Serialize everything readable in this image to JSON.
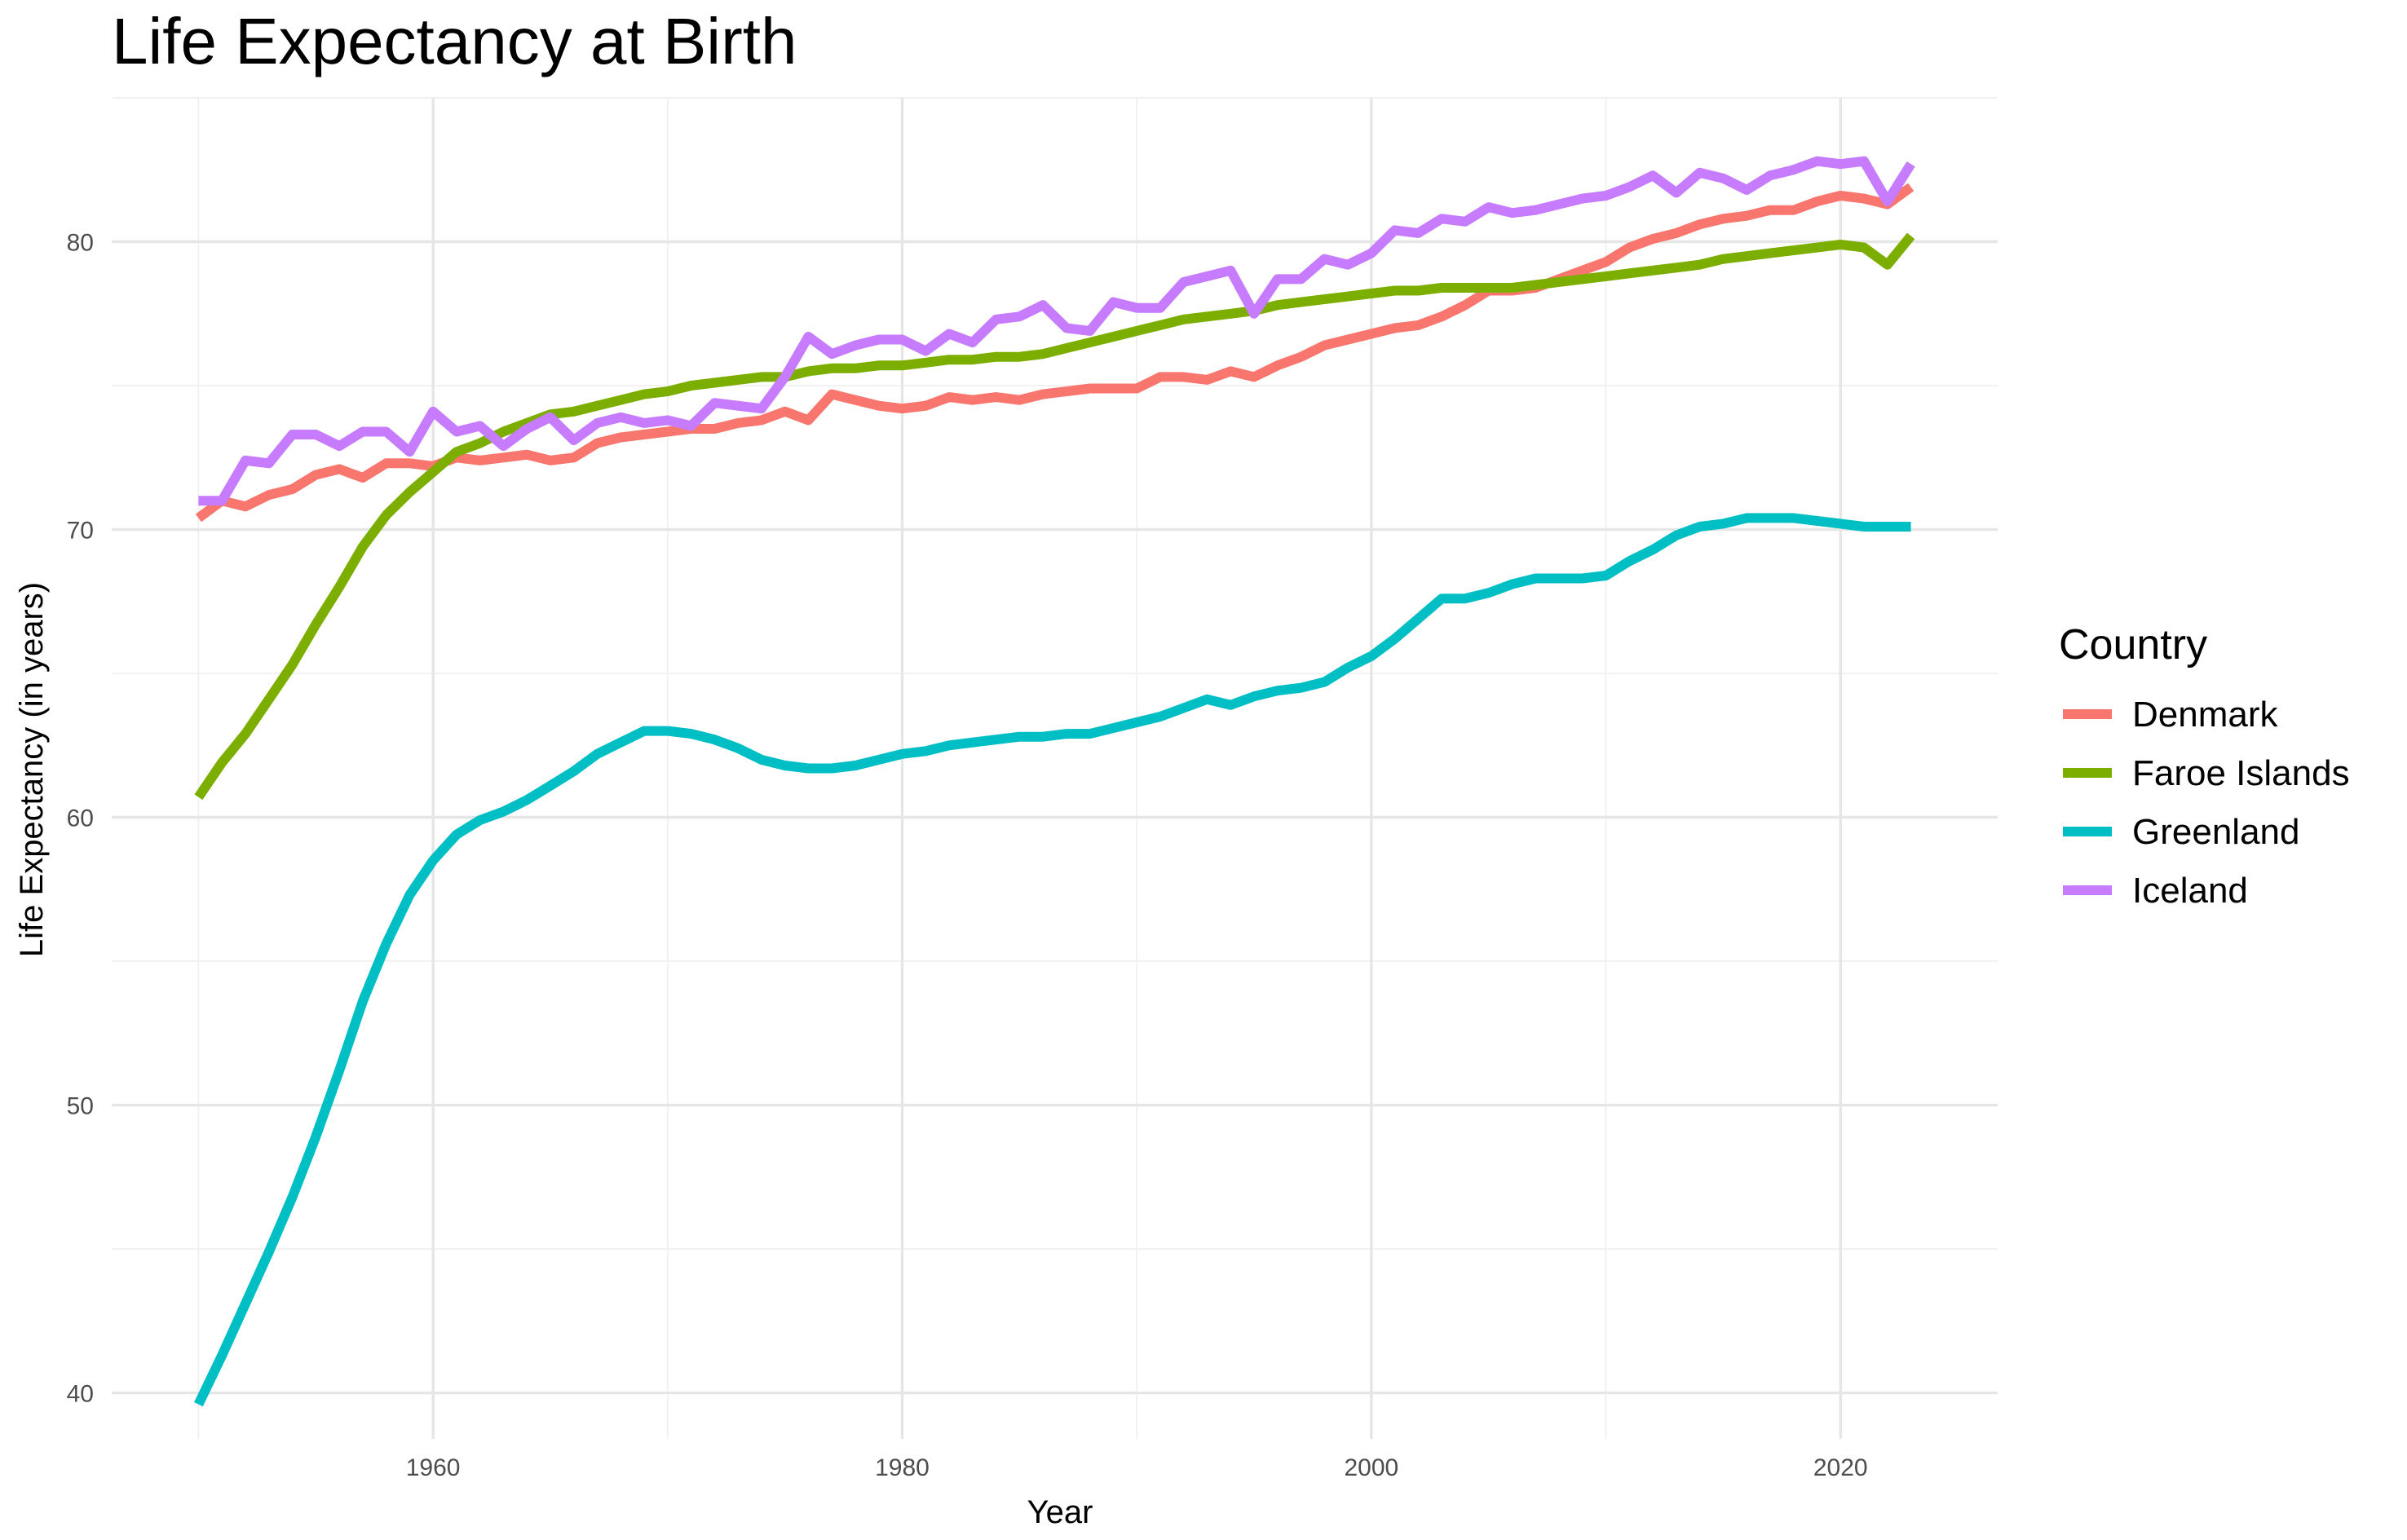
{
  "chart_data": {
    "type": "line",
    "title": "Life Expectancy at Birth",
    "xlabel": "Year",
    "ylabel": "Life Expectancy (in years)",
    "xlim": [
      1946.3,
      2026.7
    ],
    "ylim": [
      38.4,
      85.0
    ],
    "x_ticks": [
      1960,
      1980,
      2000,
      2020
    ],
    "y_ticks": [
      40,
      50,
      60,
      70,
      80
    ],
    "grid": true,
    "legend": {
      "title": "Country",
      "position": "right"
    },
    "x": [
      1950,
      1951,
      1952,
      1953,
      1954,
      1955,
      1956,
      1957,
      1958,
      1959,
      1960,
      1961,
      1962,
      1963,
      1964,
      1965,
      1966,
      1967,
      1968,
      1969,
      1970,
      1971,
      1972,
      1973,
      1974,
      1975,
      1976,
      1977,
      1978,
      1979,
      1980,
      1981,
      1982,
      1983,
      1984,
      1985,
      1986,
      1987,
      1988,
      1989,
      1990,
      1991,
      1992,
      1993,
      1994,
      1995,
      1996,
      1997,
      1998,
      1999,
      2000,
      2001,
      2002,
      2003,
      2004,
      2005,
      2006,
      2007,
      2008,
      2009,
      2010,
      2011,
      2012,
      2013,
      2014,
      2015,
      2016,
      2017,
      2018,
      2019,
      2020,
      2021,
      2022,
      2023
    ],
    "series": [
      {
        "name": "Denmark",
        "color": "#F8766D",
        "values": [
          70.4,
          71.0,
          70.8,
          71.2,
          71.4,
          71.9,
          72.1,
          71.8,
          72.3,
          72.3,
          72.2,
          72.5,
          72.4,
          72.5,
          72.6,
          72.4,
          72.5,
          73.0,
          73.2,
          73.3,
          73.4,
          73.5,
          73.5,
          73.7,
          73.8,
          74.1,
          73.8,
          74.7,
          74.5,
          74.3,
          74.2,
          74.3,
          74.6,
          74.5,
          74.6,
          74.5,
          74.7,
          74.8,
          74.9,
          74.9,
          74.9,
          75.3,
          75.3,
          75.2,
          75.5,
          75.3,
          75.7,
          76.0,
          76.4,
          76.6,
          76.8,
          77.0,
          77.1,
          77.4,
          77.8,
          78.3,
          78.3,
          78.4,
          78.7,
          79.0,
          79.3,
          79.8,
          80.1,
          80.3,
          80.6,
          80.8,
          80.9,
          81.1,
          81.1,
          81.4,
          81.6,
          81.5,
          81.3,
          81.9
        ]
      },
      {
        "name": "Faroe Islands",
        "color": "#7CAE00",
        "values": [
          60.7,
          61.9,
          62.9,
          64.1,
          65.3,
          66.7,
          68.0,
          69.4,
          70.5,
          71.3,
          72.0,
          72.7,
          73.0,
          73.4,
          73.7,
          74.0,
          74.1,
          74.3,
          74.5,
          74.7,
          74.8,
          75.0,
          75.1,
          75.2,
          75.3,
          75.3,
          75.5,
          75.6,
          75.6,
          75.7,
          75.7,
          75.8,
          75.9,
          75.9,
          76.0,
          76.0,
          76.1,
          76.3,
          76.5,
          76.7,
          76.9,
          77.1,
          77.3,
          77.4,
          77.5,
          77.6,
          77.8,
          77.9,
          78.0,
          78.1,
          78.2,
          78.3,
          78.3,
          78.4,
          78.4,
          78.4,
          78.4,
          78.5,
          78.6,
          78.7,
          78.8,
          78.9,
          79.0,
          79.1,
          79.2,
          79.4,
          79.5,
          79.6,
          79.7,
          79.8,
          79.9,
          79.8,
          79.2,
          80.2
        ]
      },
      {
        "name": "Greenland",
        "color": "#00BFC4",
        "values": [
          39.6,
          41.3,
          43.1,
          44.9,
          46.8,
          48.9,
          51.2,
          53.6,
          55.6,
          57.3,
          58.5,
          59.4,
          59.9,
          60.2,
          60.6,
          61.1,
          61.6,
          62.2,
          62.6,
          63.0,
          63.0,
          62.9,
          62.7,
          62.4,
          62.0,
          61.8,
          61.7,
          61.7,
          61.8,
          62.0,
          62.2,
          62.3,
          62.5,
          62.6,
          62.7,
          62.8,
          62.8,
          62.9,
          62.9,
          63.1,
          63.3,
          63.5,
          63.8,
          64.1,
          63.9,
          64.2,
          64.4,
          64.5,
          64.7,
          65.2,
          65.6,
          66.2,
          66.9,
          67.6,
          67.6,
          67.8,
          68.1,
          68.3,
          68.3,
          68.3,
          68.4,
          68.9,
          69.3,
          69.8,
          70.1,
          70.2,
          70.4,
          70.4,
          70.4,
          70.3,
          70.2,
          70.1,
          70.1,
          70.1
        ]
      },
      {
        "name": "Iceland",
        "color": "#C77CFF",
        "values": [
          71.0,
          71.0,
          72.4,
          72.3,
          73.3,
          73.3,
          72.9,
          73.4,
          73.4,
          72.7,
          74.1,
          73.4,
          73.6,
          72.9,
          73.5,
          73.9,
          73.1,
          73.7,
          73.9,
          73.7,
          73.8,
          73.6,
          74.4,
          74.3,
          74.2,
          75.3,
          76.7,
          76.1,
          76.4,
          76.6,
          76.6,
          76.2,
          76.8,
          76.5,
          77.3,
          77.4,
          77.8,
          77.0,
          76.9,
          77.9,
          77.7,
          77.7,
          78.6,
          78.8,
          79.0,
          77.5,
          78.7,
          78.7,
          79.4,
          79.2,
          79.6,
          80.4,
          80.3,
          80.8,
          80.7,
          81.2,
          81.0,
          81.1,
          81.3,
          81.5,
          81.6,
          81.9,
          82.3,
          81.7,
          82.4,
          82.2,
          81.8,
          82.3,
          82.5,
          82.8,
          82.7,
          82.8,
          81.4,
          82.7
        ]
      }
    ]
  }
}
